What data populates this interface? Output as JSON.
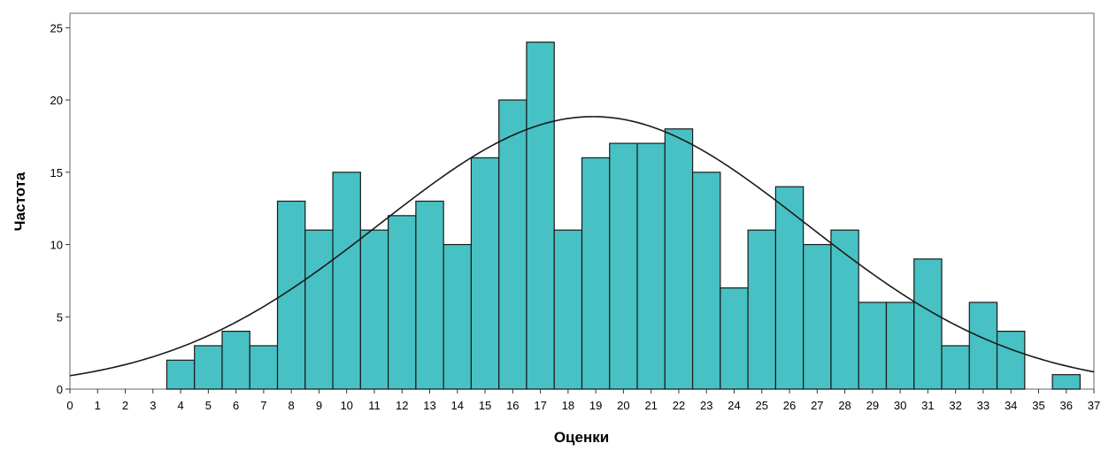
{
  "chart_data": {
    "type": "bar",
    "xlabel": "Оценки",
    "ylabel": "Частота",
    "xlim": [
      0,
      37
    ],
    "ylim": [
      0,
      26
    ],
    "x_ticks": [
      0,
      1,
      2,
      3,
      4,
      5,
      6,
      7,
      8,
      9,
      10,
      11,
      12,
      13,
      14,
      15,
      16,
      17,
      18,
      19,
      20,
      21,
      22,
      23,
      24,
      25,
      26,
      27,
      28,
      29,
      30,
      31,
      32,
      33,
      34,
      35,
      36,
      37
    ],
    "y_ticks": [
      0,
      5,
      10,
      15,
      20,
      25
    ],
    "grid": false,
    "legend": "none",
    "series": [
      {
        "type": "histogram",
        "bin_width": 1,
        "x": [
          4,
          5,
          6,
          7,
          8,
          9,
          10,
          11,
          12,
          13,
          14,
          15,
          16,
          17,
          18,
          19,
          20,
          21,
          22,
          23,
          24,
          25,
          26,
          27,
          28,
          29,
          30,
          31,
          32,
          33,
          34,
          35,
          36
        ],
        "values": [
          2,
          3,
          4,
          3,
          13,
          11,
          15,
          11,
          12,
          13,
          10,
          16,
          20,
          24,
          11,
          16,
          17,
          17,
          18,
          15,
          7,
          11,
          14,
          10,
          11,
          6,
          6,
          9,
          3,
          6,
          4,
          0,
          1
        ],
        "color": "#47c1c4",
        "edge_color": "#1a1a1a"
      },
      {
        "type": "normal-curve",
        "mean": 18.9,
        "peak": 18.85,
        "sd": 7.7,
        "color": "#1a1a1a"
      }
    ]
  }
}
